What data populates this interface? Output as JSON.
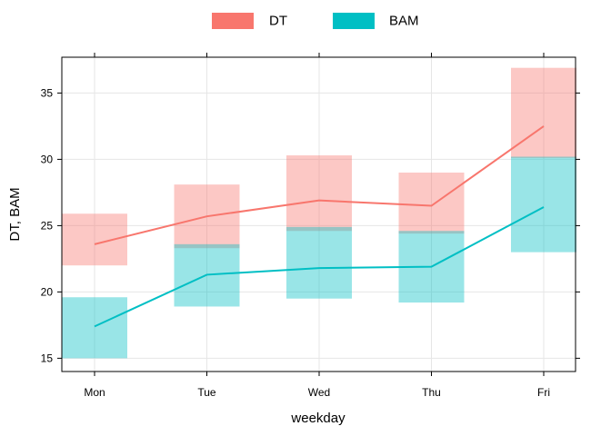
{
  "chart_data": {
    "type": "line",
    "title": "",
    "xlabel": "weekday",
    "ylabel": "DT, BAM",
    "categories": [
      "Mon",
      "Tue",
      "Wed",
      "Thu",
      "Fri"
    ],
    "ylim": [
      14,
      37.7
    ],
    "yticks": [
      15,
      20,
      25,
      30,
      35
    ],
    "grid": true,
    "legend": "top",
    "series": [
      {
        "name": "DT",
        "color": "#F8766D",
        "values": [
          23.6,
          25.7,
          26.9,
          26.5,
          32.5
        ],
        "lower": [
          22.0,
          23.3,
          24.6,
          24.4,
          30.1
        ],
        "upper": [
          25.9,
          28.1,
          30.3,
          29.0,
          36.9
        ]
      },
      {
        "name": "BAM",
        "color": "#00BFC4",
        "values": [
          17.4,
          21.3,
          21.8,
          21.9,
          26.4
        ],
        "lower": [
          15.0,
          18.9,
          19.5,
          19.2,
          23.0
        ],
        "upper": [
          19.6,
          23.6,
          24.9,
          24.6,
          30.2
        ]
      }
    ]
  }
}
